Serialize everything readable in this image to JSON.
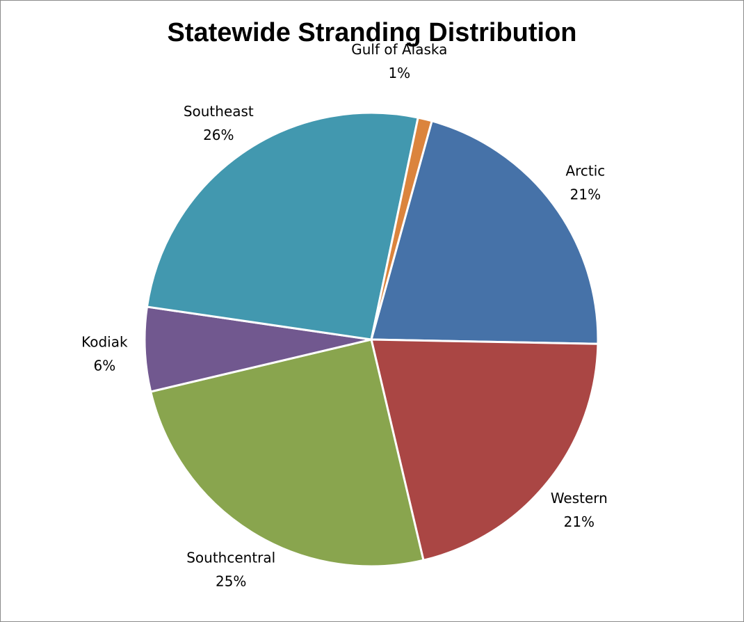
{
  "chart_data": {
    "type": "pie",
    "title": "Statewide Stranding Distribution",
    "slices": [
      {
        "label": "Arctic",
        "value": 21,
        "display": "21%",
        "color": "#4672A8"
      },
      {
        "label": "Western",
        "value": 21,
        "display": "21%",
        "color": "#AA4644"
      },
      {
        "label": "Southcentral",
        "value": 25,
        "display": "25%",
        "color": "#89A54E"
      },
      {
        "label": "Kodiak",
        "value": 6,
        "display": "6%",
        "color": "#71588F"
      },
      {
        "label": "Southeast",
        "value": 26,
        "display": "26%",
        "color": "#4298AF"
      },
      {
        "label": "Gulf of Alaska",
        "value": 1,
        "display": "1%",
        "color": "#DB843D"
      }
    ],
    "start_position": "12 o'clock",
    "direction": "clockwise",
    "legend": "none"
  }
}
